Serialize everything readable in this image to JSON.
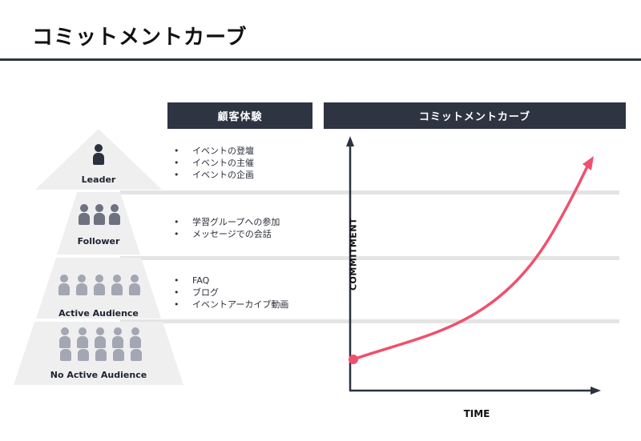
{
  "page": {
    "title": "コミットメントカーブ"
  },
  "headers": {
    "experience": "顧客体験",
    "curve": "コミットメントカーブ"
  },
  "tiers": [
    {
      "label": "Leader",
      "items": [
        "イベントの登壇",
        "イベントの主催",
        "イベントの企画"
      ]
    },
    {
      "label": "Follower",
      "items": [
        "学習グループへの参加",
        "メッセージでの会話"
      ]
    },
    {
      "label": "Active Audience",
      "items": [
        "FAQ",
        "ブログ",
        "イベントアーカイブ動画"
      ]
    },
    {
      "label": "No Active Audience",
      "items": []
    }
  ],
  "chart_data": {
    "type": "line",
    "xlabel": "TIME",
    "ylabel": "COMMITMENT",
    "series": [
      {
        "color": "#f0506e",
        "shape": "exponential-growth",
        "start_marker": "dot",
        "end_marker": "arrow"
      }
    ],
    "colors": {
      "axis": "#2c3140",
      "curve": "#f0506e"
    }
  }
}
